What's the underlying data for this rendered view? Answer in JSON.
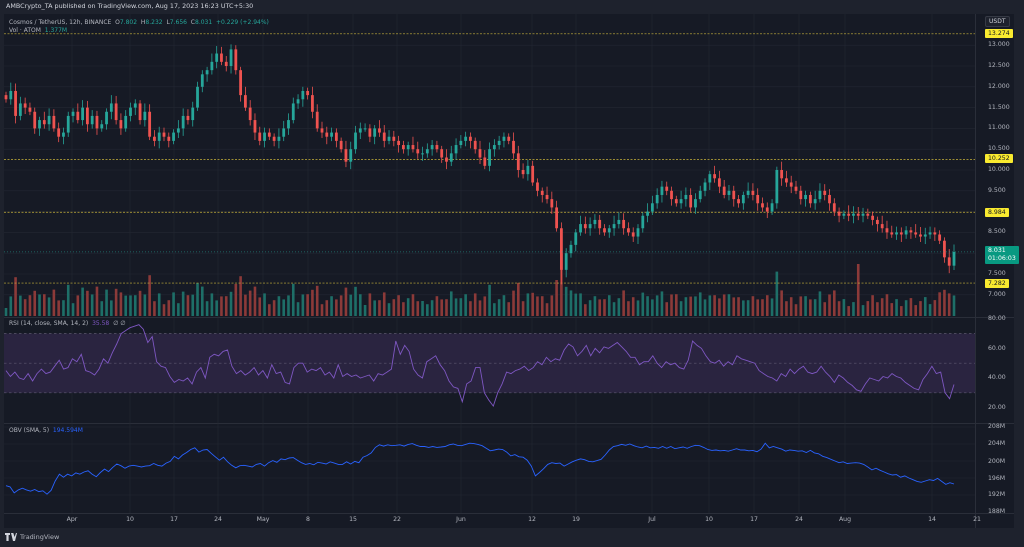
{
  "header": {
    "publish_text": "AMBCrypto_TA published on TradingView.com, Aug 17, 2023 16:23 UTC+5:30"
  },
  "symbol_legend": {
    "title": "Cosmos / TetherUS, 12h, BINANCE",
    "open_label": "O",
    "open": "7.802",
    "high_label": "H",
    "high": "8.232",
    "low_label": "L",
    "low": "7.656",
    "close_label": "C",
    "close": "8.031",
    "change": "+0.229 (+2.94%)"
  },
  "volume_legend": {
    "label": "Vol · ATOM",
    "value": "1.377M"
  },
  "rsi_legend": {
    "label": "RSI (14, close, SMA, 14, 2)",
    "value": "35.58",
    "extra": "∅ ∅"
  },
  "obv_legend": {
    "label": "OBV (SMA, 5)",
    "value": "194.594M"
  },
  "price_axis": {
    "currency": "USDT",
    "ticks": [
      "13.000",
      "12.500",
      "12.000",
      "11.500",
      "11.000",
      "10.500",
      "10.000",
      "9.500",
      "8.500",
      "7.500",
      "7.000"
    ],
    "horizontal_levels": [
      "13.274",
      "10.252",
      "8.984",
      "7.282"
    ],
    "last_price": "8.031",
    "countdown": "01:06:03"
  },
  "rsi_axis": {
    "ticks": [
      "80.00",
      "60.00",
      "40.00",
      "20.00"
    ]
  },
  "obv_axis": {
    "ticks": [
      "208M",
      "204M",
      "200M",
      "196M",
      "192M",
      "188M"
    ]
  },
  "time_axis": {
    "labels": [
      "Apr",
      "10",
      "17",
      "24",
      "May",
      "8",
      "15",
      "22",
      "Jun",
      "12",
      "19",
      "Jul",
      "10",
      "17",
      "24",
      "Aug",
      "14",
      "21"
    ]
  },
  "footer": {
    "brand": "TradingView"
  },
  "colors": {
    "up": "#26a69a",
    "down": "#ef5350",
    "level_line": "#c9b43a",
    "rsi_line": "#7e57c2",
    "rsi_band": "#2a2440",
    "obv_line": "#2962ff",
    "background": "#161a25",
    "grid": "#232733"
  },
  "chart_data": [
    {
      "type": "candlestick",
      "title": "Cosmos / TetherUS, 12h, BINANCE",
      "ylabel": "USDT",
      "ylim": [
        6.7,
        13.6
      ],
      "horizontal_levels": [
        13.274,
        10.252,
        8.984,
        7.282
      ],
      "x_ticks": [
        "Apr",
        "10",
        "17",
        "24",
        "May",
        "8",
        "15",
        "22",
        "Jun",
        "12",
        "19",
        "Jul",
        "10",
        "17",
        "24",
        "Aug",
        "14",
        "21"
      ],
      "close_path": [
        11.7,
        11.9,
        11.3,
        11.6,
        11.5,
        11.4,
        11.0,
        11.2,
        11.1,
        11.3,
        11.0,
        10.8,
        10.9,
        11.3,
        11.4,
        11.2,
        11.5,
        11.1,
        11.3,
        11.0,
        11.1,
        11.4,
        11.6,
        11.2,
        11.0,
        11.3,
        11.5,
        11.6,
        11.2,
        11.4,
        10.8,
        10.7,
        10.9,
        10.8,
        10.7,
        10.9,
        11.0,
        11.3,
        11.2,
        11.5,
        12.0,
        12.3,
        12.4,
        12.6,
        12.8,
        12.6,
        12.5,
        12.9,
        12.4,
        11.8,
        11.5,
        11.2,
        10.9,
        10.7,
        10.9,
        10.8,
        10.7,
        10.8,
        11.0,
        11.2,
        11.6,
        11.7,
        11.9,
        11.8,
        11.4,
        11.0,
        10.9,
        10.8,
        10.9,
        10.7,
        10.5,
        10.2,
        10.5,
        10.9,
        11.0,
        11.0,
        10.8,
        11.0,
        10.9,
        10.7,
        10.8,
        10.7,
        10.6,
        10.5,
        10.6,
        10.5,
        10.4,
        10.4,
        10.5,
        10.6,
        10.5,
        10.3,
        10.2,
        10.4,
        10.6,
        10.7,
        10.8,
        10.7,
        10.5,
        10.3,
        10.1,
        10.5,
        10.6,
        10.7,
        10.8,
        10.7,
        10.4,
        10.0,
        9.9,
        10.1,
        9.7,
        9.5,
        9.4,
        9.3,
        9.1,
        8.6,
        7.6,
        8.0,
        8.2,
        8.5,
        8.7,
        8.6,
        8.7,
        8.8,
        8.6,
        8.5,
        8.6,
        8.7,
        8.8,
        8.6,
        8.5,
        8.4,
        8.6,
        8.9,
        9.0,
        9.2,
        9.4,
        9.6,
        9.5,
        9.3,
        9.2,
        9.3,
        9.4,
        9.1,
        9.3,
        9.5,
        9.7,
        9.9,
        9.8,
        9.6,
        9.4,
        9.5,
        9.3,
        9.2,
        9.4,
        9.5,
        9.4,
        9.2,
        9.1,
        9.0,
        9.2,
        10.0,
        9.8,
        9.7,
        9.6,
        9.5,
        9.3,
        9.4,
        9.2,
        9.3,
        9.5,
        9.4,
        9.2,
        9.0,
        8.9,
        8.95,
        8.9,
        8.95,
        8.9,
        8.95,
        8.9,
        8.8,
        8.7,
        8.6,
        8.5,
        8.45,
        8.5,
        8.45,
        8.55,
        8.5,
        8.45,
        8.4,
        8.45,
        8.5,
        8.45,
        8.3,
        7.9,
        7.7,
        8.03
      ]
    },
    {
      "type": "bar",
      "title": "Vol · ATOM",
      "note": "volume histogram, relative heights (0-1), colored by candle direction"
    },
    {
      "type": "line",
      "title": "RSI (14, close, SMA, 14, 2)",
      "ylim": [
        10,
        82
      ],
      "bands": [
        30,
        50,
        70
      ],
      "last_value": 35.58,
      "values": [
        45,
        41,
        44,
        40,
        39,
        43,
        38,
        43,
        46,
        43,
        44,
        48,
        52,
        46,
        47,
        53,
        51,
        56,
        45,
        44,
        42,
        46,
        53,
        50,
        57,
        63,
        70,
        72,
        74,
        75,
        76,
        73,
        64,
        68,
        51,
        48,
        47,
        41,
        37,
        39,
        38,
        40,
        36,
        44,
        47,
        40,
        54,
        56,
        55,
        58,
        59,
        48,
        43,
        45,
        42,
        44,
        47,
        42,
        45,
        40,
        49,
        43,
        44,
        37,
        36,
        47,
        50,
        50,
        44,
        46,
        45,
        47,
        42,
        44,
        40,
        49,
        41,
        43,
        41,
        42,
        40,
        41,
        42,
        38,
        43,
        42,
        44,
        46,
        65,
        56,
        62,
        58,
        46,
        42,
        40,
        51,
        53,
        55,
        49,
        45,
        38,
        34,
        33,
        24,
        36,
        38,
        47,
        47,
        30,
        25,
        21,
        30,
        36,
        44,
        43,
        45,
        46,
        48,
        45,
        47,
        51,
        49,
        54,
        51,
        53,
        52,
        59,
        63,
        61,
        55,
        58,
        62,
        55,
        60,
        57,
        61,
        60,
        62,
        64,
        61,
        58,
        54,
        54,
        49,
        51,
        51,
        55,
        50,
        47,
        51,
        49,
        50,
        47,
        46,
        52,
        65,
        62,
        60,
        55,
        51,
        50,
        52,
        48,
        51,
        49,
        55,
        53,
        52,
        51,
        50,
        45,
        43,
        41,
        40,
        38,
        43,
        41,
        46,
        43,
        46,
        48,
        44,
        43,
        44,
        48,
        44,
        41,
        37,
        42,
        40,
        37,
        35,
        32,
        31,
        36,
        40,
        39,
        38,
        41,
        40,
        43,
        41,
        40,
        37,
        35,
        33,
        32,
        39,
        43,
        48,
        43,
        44,
        30,
        26,
        35.6
      ]
    },
    {
      "type": "line",
      "title": "OBV (SMA, 5)",
      "ylabel": "M",
      "ylim": [
        188,
        208
      ],
      "last_value": 194.594,
      "values": [
        194.2,
        193.9,
        192.5,
        193.2,
        193.6,
        193.2,
        192.9,
        193.3,
        192.8,
        193.0,
        192.2,
        193.1,
        195.3,
        196.9,
        196.2,
        196.9,
        196.5,
        197.2,
        196.9,
        197.4,
        197.7,
        196.9,
        196.3,
        197.3,
        198.1,
        197.5,
        198.5,
        199.3,
        198.9,
        198.3,
        198.8,
        199.0,
        198.8,
        198.6,
        198.8,
        198.9,
        199.4,
        199.0,
        198.8,
        199.5,
        199.9,
        201.1,
        200.5,
        201.4,
        202.0,
        202.7,
        203.1,
        202.1,
        202.6,
        202.7,
        201.8,
        201.0,
        200.2,
        200.9,
        199.8,
        199.0,
        198.4,
        198.9,
        199.0,
        198.8,
        198.6,
        199.2,
        199.4,
        198.8,
        199.6,
        200.1,
        199.7,
        200.5,
        200.3,
        200.7,
        200.8,
        200.2,
        199.6,
        199.2,
        199.4,
        199.1,
        199.7,
        199.5,
        199.3,
        199.8,
        199.5,
        199.2,
        199.2,
        199.8,
        199.3,
        199.9,
        199.6,
        200.9,
        201.3,
        201.9,
        203.2,
        203.8,
        203.5,
        203.8,
        203.6,
        203.7,
        203.8,
        203.5,
        203.9,
        204.1,
        203.7,
        203.4,
        203.4,
        203.2,
        203.4,
        203.2,
        203.3,
        203.4,
        203.8,
        204.0,
        203.7,
        203.6,
        203.9,
        204.2,
        204.1,
        203.9,
        203.6,
        203.0,
        202.4,
        202.6,
        202.8,
        202.7,
        202.1,
        201.2,
        201.5,
        201.0,
        200.9,
        200.2,
        198.8,
        196.5,
        197.3,
        198.2,
        199.2,
        199.6,
        199.4,
        199.5,
        198.8,
        199.3,
        199.8,
        200.2,
        200.5,
        200.3,
        199.9,
        199.8,
        200.1,
        200.4,
        201.4,
        202.6,
        203.4,
        203.6,
        203.9,
        203.7,
        204.0,
        203.6,
        203.3,
        203.1,
        203.5,
        203.1,
        203.2,
        203.0,
        203.4,
        203.0,
        203.4,
        202.9,
        203.1,
        203.3,
        203.0,
        203.4,
        203.7,
        203.6,
        203.2,
        202.7,
        202.5,
        202.6,
        202.4,
        202.5,
        202.3,
        202.6,
        202.9,
        202.6,
        202.6,
        202.4,
        202.5,
        202.2,
        202.8,
        204.2,
        203.1,
        203.4,
        203.1,
        202.8,
        202.3,
        202.6,
        202.5,
        202.3,
        202.4,
        202.0,
        202.5,
        201.9,
        201.7,
        201.1,
        200.8,
        200.4,
        200.0,
        199.6,
        199.8,
        199.4,
        199.5,
        199.6,
        199.5,
        199.2,
        198.6,
        197.9,
        198.3,
        197.8,
        197.4,
        197.0,
        196.7,
        196.8,
        196.2,
        196.5,
        196.0,
        195.6,
        195.2,
        195.0,
        195.3,
        195.6,
        195.4,
        195.9,
        195.2,
        194.5,
        194.9,
        194.6
      ]
    }
  ]
}
